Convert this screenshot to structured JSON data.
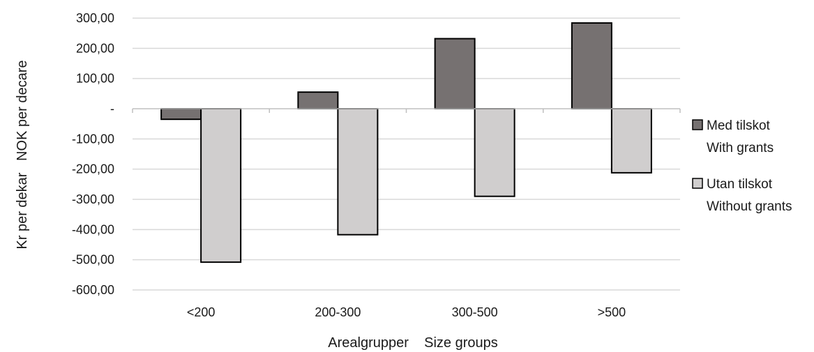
{
  "chart_data": {
    "type": "bar",
    "categories": [
      "<200",
      "200-300",
      "300-500",
      ">500"
    ],
    "series": [
      {
        "name": "Med tilskot With grants",
        "legend_lines": [
          "Med tilskot",
          "With grants"
        ],
        "color": "#767171",
        "values": [
          -35,
          55,
          232,
          284
        ]
      },
      {
        "name": "Utan tilskot Without grants",
        "legend_lines": [
          "Utan tilskot",
          "Without grants"
        ],
        "color": "#d0cece",
        "values": [
          -508,
          -417,
          -290,
          -212
        ]
      }
    ],
    "ylim": [
      -600,
      300
    ],
    "yticks": [
      300,
      200,
      100,
      0,
      -100,
      -200,
      -300,
      -400,
      -500,
      -600
    ],
    "ytick_labels": [
      "300,00",
      "200,00",
      "100,00",
      "-",
      "-100,00",
      "-200,00",
      "-300,00",
      "-400,00",
      "-500,00",
      "-600,00"
    ],
    "xlabel": "Arealgrupper    Size groups",
    "ylabel": "Kr per dekar   NOK per decare",
    "grid": true,
    "legend_position": "right",
    "gridline_color": "#d9d9d9",
    "bar_edge_color": "#000000"
  }
}
